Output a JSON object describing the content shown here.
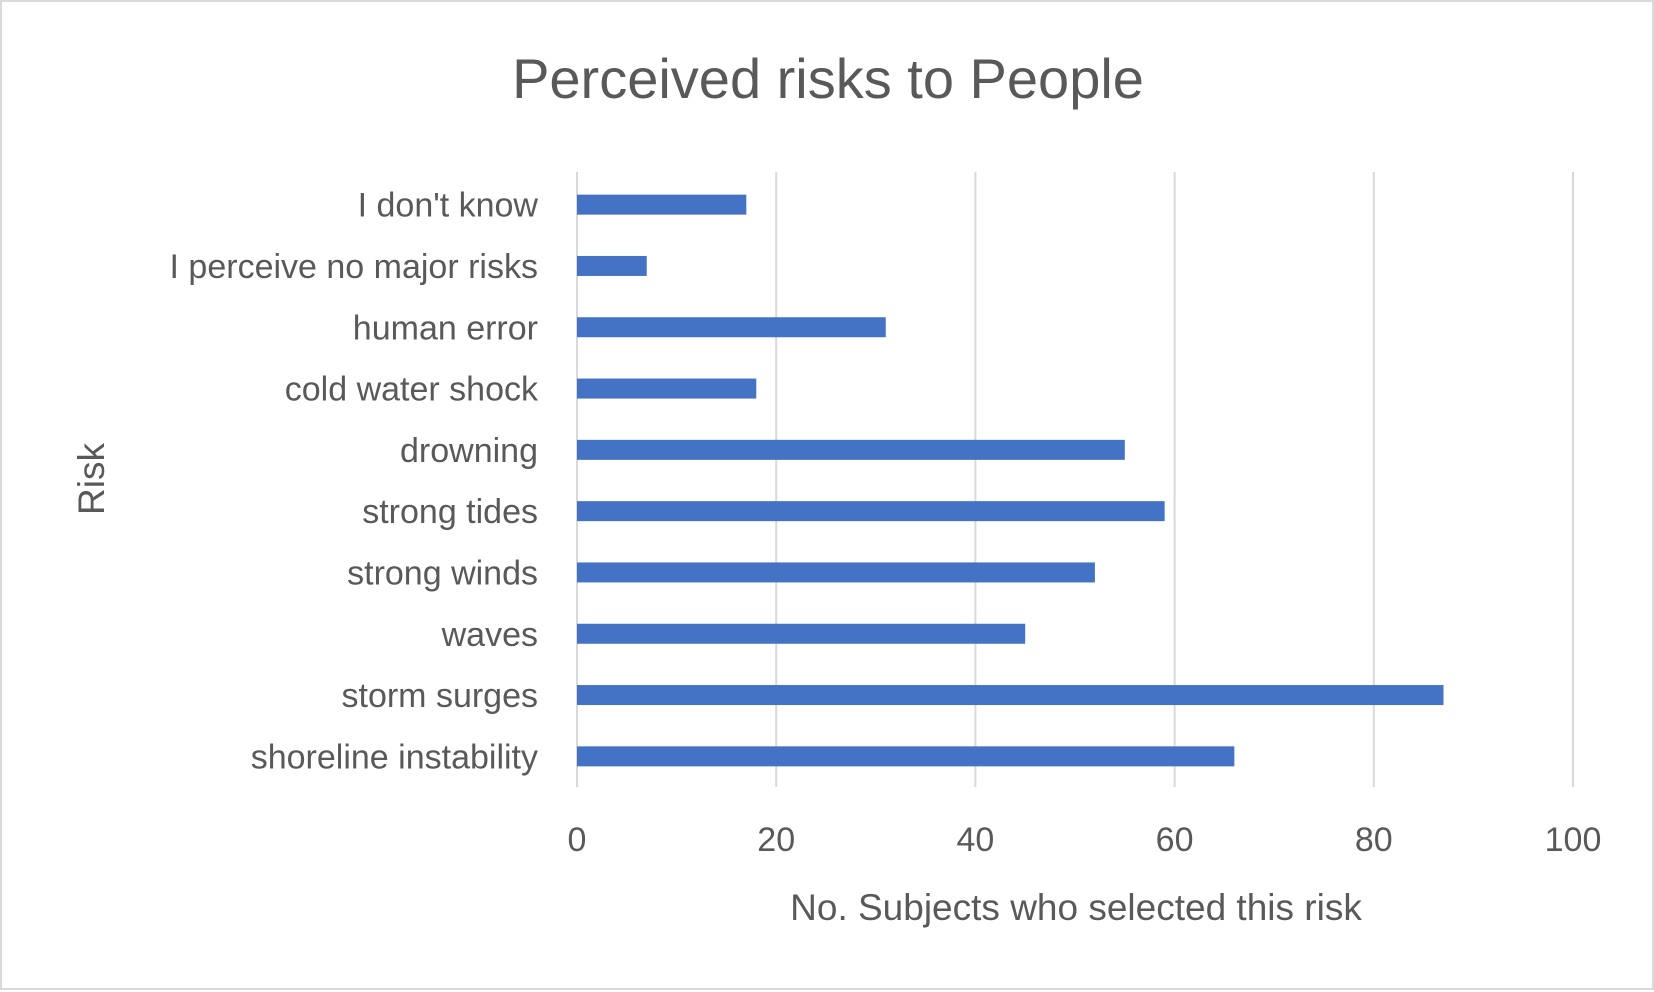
{
  "colors": {
    "bar": "#4472c4",
    "text": "#595959",
    "grid": "#d9d9d9",
    "background": "#ffffff"
  },
  "chart_data": {
    "type": "bar",
    "orientation": "horizontal",
    "title": "Perceived risks to People",
    "xlabel": "No. Subjects who selected this risk",
    "ylabel": "Risk",
    "categories": [
      "I don't know",
      "I perceive no major risks",
      "human error",
      "cold water shock",
      "drowning",
      "strong tides",
      "strong winds",
      "waves",
      "storm surges",
      "shoreline instability"
    ],
    "values": [
      17,
      7,
      31,
      18,
      55,
      59,
      52,
      45,
      87,
      66
    ],
    "xlim": [
      0,
      100
    ],
    "xticks": [
      0,
      20,
      40,
      60,
      80,
      100
    ],
    "grid": "vertical",
    "legend": "none"
  }
}
